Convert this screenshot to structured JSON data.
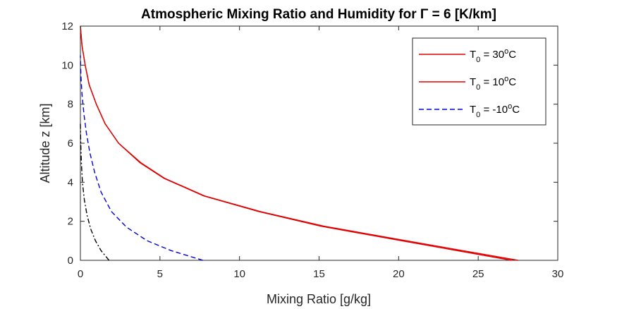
{
  "chart_data": {
    "type": "line",
    "title": "Atmospheric Mixing Ratio and Humidity for Γ = 6 [K/km]",
    "xlabel": "Mixing Ratio [g/kg]",
    "ylabel": "Altitude z [km]",
    "xlim": [
      0,
      30
    ],
    "ylim": [
      0,
      12
    ],
    "xticks": [
      0,
      5,
      10,
      15,
      20,
      25,
      30
    ],
    "yticks": [
      0,
      2,
      4,
      6,
      8,
      10,
      12
    ],
    "grid": false,
    "legend_position": "top-right",
    "series": [
      {
        "name": "T0 = 30oC",
        "legend": {
          "base": "T",
          "sub": "0",
          "mid": " = 30",
          "sup": "o",
          "end": "C"
        },
        "color": "#e00000",
        "style": "solid",
        "points": [
          [
            27.5,
            0
          ],
          [
            20.5,
            1
          ],
          [
            15.3,
            1.75
          ],
          [
            11.3,
            2.5
          ],
          [
            7.8,
            3.3
          ],
          [
            5.3,
            4.2
          ],
          [
            3.8,
            5
          ],
          [
            2.4,
            6
          ],
          [
            1.55,
            7
          ],
          [
            1.0,
            8
          ],
          [
            0.55,
            9
          ],
          [
            0.3,
            10
          ],
          [
            0.1,
            11
          ],
          [
            0.0,
            12
          ]
        ]
      },
      {
        "name": "T0 = 10oC",
        "legend": {
          "base": "T",
          "sub": "0",
          "mid": " = 10",
          "sup": "o",
          "end": "C"
        },
        "color": "#e00000",
        "style": "solid",
        "points": [
          [
            27.1,
            0
          ],
          [
            20.2,
            1
          ],
          [
            15.1,
            1.75
          ],
          [
            11.2,
            2.5
          ],
          [
            7.75,
            3.3
          ],
          [
            5.25,
            4.2
          ],
          [
            3.75,
            5
          ],
          [
            2.4,
            6
          ],
          [
            1.55,
            7
          ],
          [
            1.0,
            8
          ],
          [
            0.55,
            9
          ],
          [
            0.3,
            10
          ],
          [
            0.1,
            11
          ],
          [
            0.0,
            12
          ]
        ]
      },
      {
        "name": "T0 = -10oC",
        "legend": {
          "base": "T",
          "sub": "0",
          "mid": " = -10",
          "sup": "o",
          "end": "C"
        },
        "color": "#0000e0",
        "style": "dashed",
        "points": [
          [
            7.7,
            0
          ],
          [
            5.7,
            0.5
          ],
          [
            4.2,
            1
          ],
          [
            2.9,
            1.7
          ],
          [
            1.95,
            2.5
          ],
          [
            1.3,
            3.5
          ],
          [
            0.9,
            4.5
          ],
          [
            0.6,
            5.5
          ],
          [
            0.38,
            6.5
          ],
          [
            0.22,
            7.5
          ],
          [
            0.1,
            8.5
          ],
          [
            0.03,
            9.5
          ],
          [
            0.0,
            10.5
          ]
        ]
      },
      {
        "color": "#000000",
        "style": "dashdot",
        "points": [
          [
            1.8,
            0
          ],
          [
            1.3,
            0.5
          ],
          [
            0.95,
            1
          ],
          [
            0.65,
            1.6
          ],
          [
            0.42,
            2.3
          ],
          [
            0.25,
            3.1
          ],
          [
            0.13,
            4
          ],
          [
            0.06,
            5
          ],
          [
            0.02,
            6
          ],
          [
            0.0,
            7
          ]
        ]
      }
    ]
  }
}
